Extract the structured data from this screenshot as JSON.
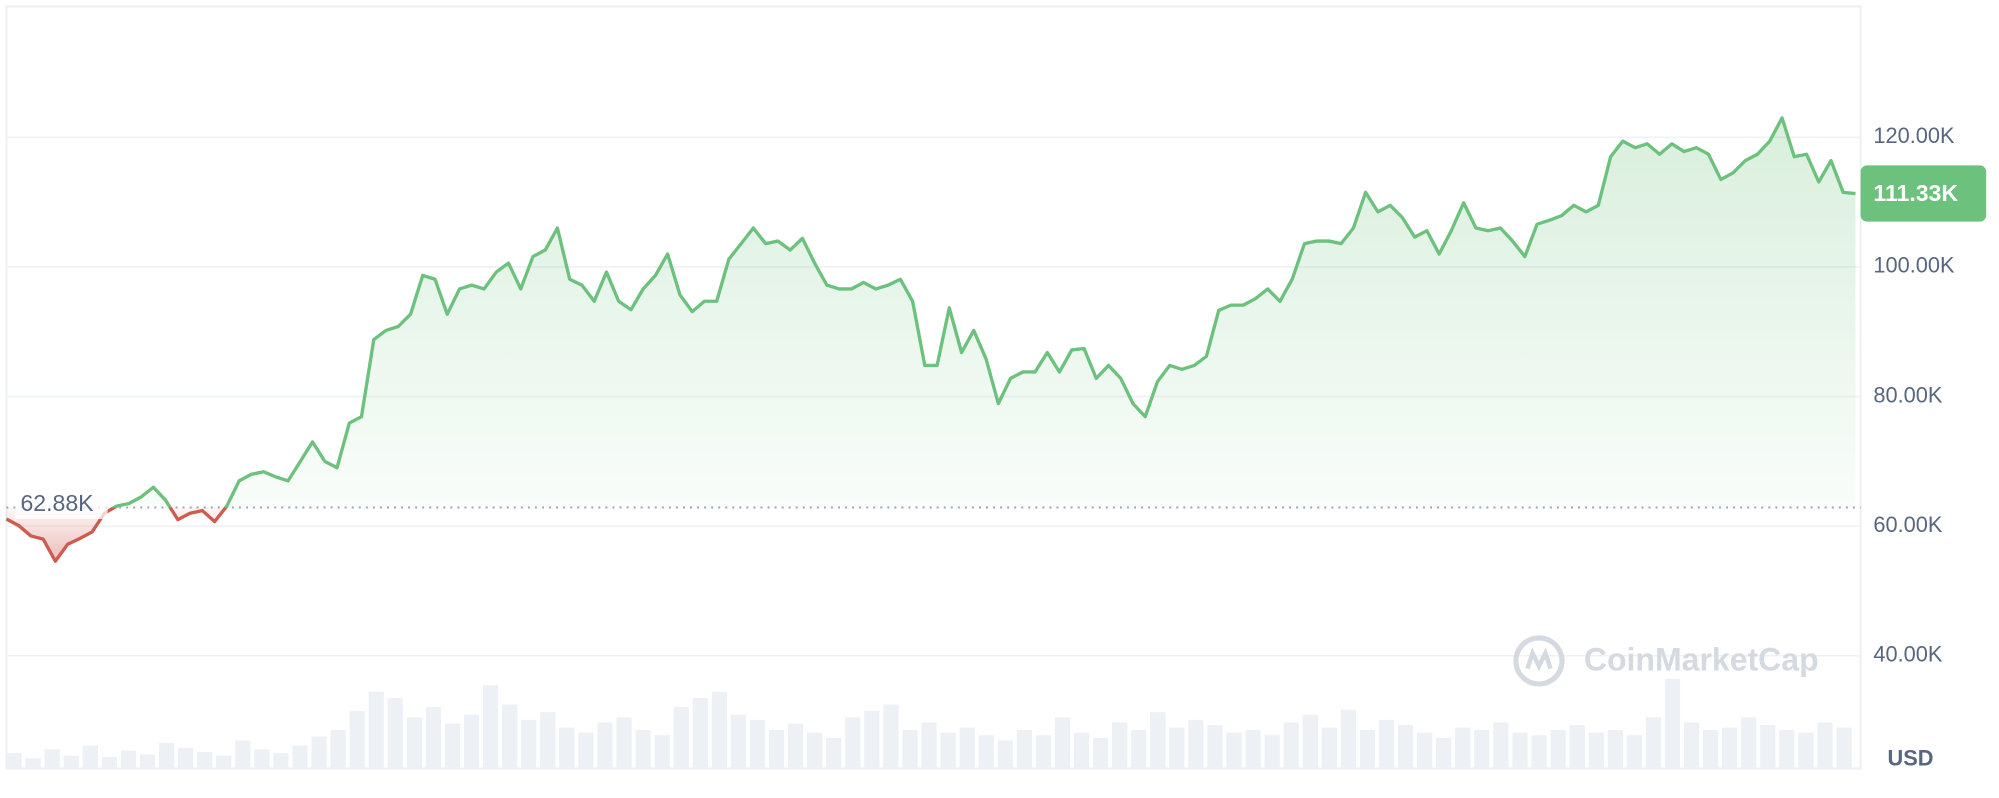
{
  "chart_data": {
    "type": "line",
    "values": [
      61100,
      60100,
      58500,
      58000,
      54600,
      57200,
      58100,
      59100,
      62000,
      63100,
      63500,
      64500,
      66000,
      64000,
      61000,
      62000,
      62400,
      60700,
      63100,
      67000,
      68000,
      68400,
      67600,
      67000,
      70000,
      73000,
      70000,
      69000,
      75900,
      76900,
      88800,
      90200,
      90800,
      92700,
      98700,
      98100,
      92700,
      96600,
      97200,
      96600,
      99200,
      100600,
      96600,
      101600,
      102600,
      106000,
      98100,
      97200,
      94700,
      99200,
      94700,
      93400,
      96600,
      98700,
      102000,
      95700,
      93100,
      94700,
      94700,
      101200,
      103600,
      106000,
      103600,
      104000,
      102600,
      104400,
      100600,
      97200,
      96600,
      96600,
      97600,
      96600,
      97200,
      98100,
      94700,
      84800,
      84800,
      93700,
      86800,
      90200,
      85800,
      78900,
      82800,
      83800,
      83800,
      86800,
      83800,
      87200,
      87400,
      82800,
      84800,
      82800,
      78900,
      76900,
      82300,
      84800,
      84200,
      84800,
      86200,
      93300,
      94100,
      94100,
      95100,
      96600,
      94700,
      98100,
      103600,
      104000,
      104000,
      103600,
      106000,
      111500,
      108500,
      109500,
      107600,
      104600,
      105600,
      102000,
      105600,
      109900,
      106000,
      105600,
      106000,
      104000,
      101600,
      106600,
      107200,
      107900,
      109500,
      108500,
      109500,
      117000,
      119400,
      118400,
      119000,
      117400,
      119000,
      117800,
      118400,
      117400,
      113500,
      114500,
      116400,
      117400,
      119400,
      123000,
      117000,
      117400,
      113100,
      116400,
      111500,
      111330
    ],
    "up_color": "#6cc17c",
    "down_color": "#cf5a50",
    "baseline": {
      "value": 62880,
      "label": "62.88K"
    },
    "current_price": {
      "value": 111330,
      "label": "111.33K"
    },
    "ylim": [
      22600,
      140200
    ],
    "yticks": [
      {
        "value": 40000,
        "label": "40.00K"
      },
      {
        "value": 60000,
        "label": "60.00K"
      },
      {
        "value": 80000,
        "label": "80.00K"
      },
      {
        "value": 100000,
        "label": "100.00K"
      },
      {
        "value": 120000,
        "label": "120.00K"
      }
    ],
    "grid": true,
    "currency": "USD",
    "watermark": "CoinMarketCap",
    "volume_values": [
      12,
      8,
      15,
      10,
      18,
      9,
      14,
      11,
      20,
      16,
      13,
      10,
      22,
      15,
      12,
      18,
      25,
      30,
      45,
      60,
      55,
      40,
      48,
      35,
      42,
      65,
      50,
      38,
      44,
      32,
      28,
      36,
      40,
      30,
      26,
      48,
      55,
      60,
      42,
      38,
      30,
      35,
      28,
      24,
      40,
      45,
      50,
      30,
      36,
      28,
      32,
      26,
      22,
      30,
      26,
      40,
      28,
      24,
      36,
      30,
      44,
      32,
      38,
      34,
      28,
      30,
      26,
      36,
      42,
      32,
      46,
      30,
      38,
      34,
      28,
      24,
      32,
      30,
      36,
      28,
      26,
      30,
      34,
      28,
      30,
      26,
      40,
      70,
      36,
      30,
      32,
      40,
      34,
      30,
      28,
      36,
      32
    ]
  }
}
